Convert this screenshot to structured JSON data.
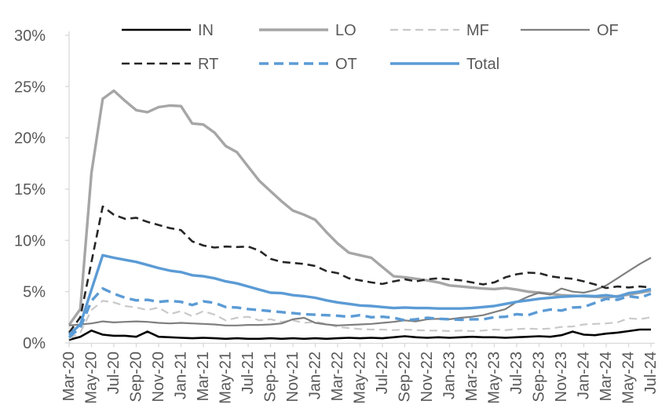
{
  "chart_data": {
    "type": "line",
    "title": "",
    "xlabel": "",
    "ylabel": "",
    "ylim": [
      0,
      30
    ],
    "grid": false,
    "legend_position": "top",
    "axis_text_color": "#595959",
    "axis_line_color": "#d9d9d9",
    "y_tick_values": [
      0,
      5,
      10,
      15,
      20,
      25,
      30
    ],
    "y_tick_labels": [
      "0%",
      "5%",
      "10%",
      "15%",
      "20%",
      "25%",
      "30%"
    ],
    "x_label_every": 2,
    "x": [
      "Mar-20",
      "Apr-20",
      "May-20",
      "Jun-20",
      "Jul-20",
      "Aug-20",
      "Sep-20",
      "Oct-20",
      "Nov-20",
      "Dec-20",
      "Jan-21",
      "Feb-21",
      "Mar-21",
      "Apr-21",
      "May-21",
      "Jun-21",
      "Jul-21",
      "Aug-21",
      "Sep-21",
      "Oct-21",
      "Nov-21",
      "Dec-21",
      "Jan-22",
      "Feb-22",
      "Mar-22",
      "Apr-22",
      "May-22",
      "Jun-22",
      "Jul-22",
      "Aug-22",
      "Sep-22",
      "Oct-22",
      "Nov-22",
      "Dec-22",
      "Jan-23",
      "Feb-23",
      "Mar-23",
      "Apr-23",
      "May-23",
      "Jun-23",
      "Jul-23",
      "Aug-23",
      "Sep-23",
      "Oct-23",
      "Nov-23",
      "Dec-23",
      "Jan-24",
      "Feb-24",
      "Mar-24",
      "Apr-24",
      "May-24",
      "Jun-24",
      "Jul-24"
    ],
    "series": [
      {
        "name": "IN",
        "color": "#000000",
        "dash": "none",
        "width": 2.6,
        "values": [
          0.3,
          0.6,
          1.2,
          0.8,
          0.7,
          0.7,
          0.6,
          1.1,
          0.6,
          0.55,
          0.5,
          0.45,
          0.5,
          0.45,
          0.4,
          0.45,
          0.4,
          0.4,
          0.45,
          0.4,
          0.45,
          0.4,
          0.45,
          0.4,
          0.45,
          0.5,
          0.45,
          0.5,
          0.45,
          0.55,
          0.65,
          0.55,
          0.5,
          0.55,
          0.5,
          0.55,
          0.6,
          0.55,
          0.55,
          0.5,
          0.55,
          0.6,
          0.65,
          0.6,
          0.75,
          1.1,
          0.8,
          0.75,
          0.9,
          1.0,
          1.15,
          1.3,
          1.3
        ]
      },
      {
        "name": "LO",
        "color": "#a6a6a6",
        "dash": "none",
        "width": 3.4,
        "values": [
          1.75,
          3.3,
          16.6,
          23.8,
          24.6,
          23.6,
          22.7,
          22.5,
          23.0,
          23.15,
          23.1,
          21.4,
          21.3,
          20.5,
          19.2,
          18.6,
          17.2,
          15.8,
          14.8,
          13.8,
          12.9,
          12.5,
          12.0,
          10.8,
          9.7,
          8.8,
          8.55,
          8.3,
          7.4,
          6.5,
          6.4,
          6.25,
          6.1,
          5.9,
          5.6,
          5.5,
          5.4,
          5.3,
          5.25,
          5.35,
          5.2,
          5.0,
          4.9,
          4.8,
          4.65,
          4.6,
          4.55,
          4.5,
          4.45,
          4.55,
          4.7,
          4.9,
          5.1
        ]
      },
      {
        "name": "MF",
        "color": "#c9c9c9",
        "dash": "10 6",
        "width": 2.2,
        "values": [
          0.4,
          1.0,
          3.2,
          4.1,
          3.95,
          3.6,
          3.45,
          3.2,
          3.45,
          2.8,
          3.1,
          2.6,
          3.1,
          2.75,
          2.2,
          2.45,
          2.55,
          2.2,
          2.3,
          2.05,
          2.2,
          1.95,
          2.05,
          1.85,
          1.55,
          1.45,
          1.35,
          1.3,
          1.3,
          1.25,
          1.3,
          1.25,
          1.2,
          1.2,
          1.15,
          1.2,
          1.15,
          1.2,
          1.3,
          1.25,
          1.35,
          1.4,
          1.35,
          1.4,
          1.55,
          1.6,
          1.8,
          1.85,
          1.9,
          2.0,
          2.4,
          2.3,
          2.5
        ]
      },
      {
        "name": "OF",
        "color": "#7f7f7f",
        "dash": "none",
        "width": 2.2,
        "values": [
          1.7,
          1.8,
          1.9,
          2.1,
          2.0,
          2.05,
          2.1,
          2.05,
          1.95,
          1.9,
          1.95,
          1.9,
          1.85,
          1.8,
          1.7,
          1.7,
          1.75,
          1.75,
          1.8,
          1.9,
          2.3,
          2.45,
          1.95,
          1.8,
          1.7,
          1.75,
          1.8,
          1.85,
          1.95,
          2.05,
          2.2,
          2.1,
          2.3,
          2.35,
          2.3,
          2.45,
          2.55,
          2.7,
          3.0,
          3.3,
          4.0,
          4.5,
          4.9,
          4.7,
          5.3,
          5.0,
          4.9,
          5.15,
          5.6,
          6.3,
          7.0,
          7.7,
          8.3
        ]
      },
      {
        "name": "RT",
        "color": "#262626",
        "dash": "10 6",
        "width": 2.6,
        "values": [
          1.0,
          2.5,
          7.9,
          13.3,
          12.5,
          12.1,
          12.2,
          11.8,
          11.5,
          11.2,
          11.0,
          9.9,
          9.5,
          9.3,
          9.4,
          9.35,
          9.4,
          9.0,
          8.2,
          7.9,
          7.8,
          7.7,
          7.5,
          7.0,
          6.8,
          6.3,
          6.1,
          5.9,
          5.75,
          6.0,
          6.2,
          6.0,
          6.2,
          6.3,
          6.2,
          6.1,
          5.9,
          5.7,
          5.9,
          6.4,
          6.7,
          6.85,
          6.8,
          6.5,
          6.35,
          6.25,
          6.0,
          5.7,
          5.35,
          5.5,
          5.4,
          5.5,
          5.4
        ]
      },
      {
        "name": "OT",
        "color": "#5b9bd5",
        "dash": "12 7",
        "width": 3.4,
        "values": [
          0.55,
          1.5,
          4.1,
          5.3,
          4.8,
          4.4,
          4.15,
          4.2,
          4.0,
          4.1,
          4.0,
          3.7,
          4.05,
          3.9,
          3.5,
          3.45,
          3.3,
          3.2,
          3.1,
          3.0,
          2.9,
          2.8,
          2.75,
          2.7,
          2.65,
          2.55,
          2.7,
          2.5,
          2.55,
          2.45,
          2.2,
          2.3,
          2.45,
          2.35,
          2.3,
          2.25,
          2.3,
          2.3,
          2.5,
          2.55,
          2.8,
          2.7,
          3.05,
          3.25,
          3.15,
          3.45,
          3.5,
          3.9,
          4.3,
          4.2,
          4.55,
          4.4,
          4.8
        ]
      },
      {
        "name": "Total",
        "color": "#5b9bd5",
        "dash": "none",
        "width": 3.4,
        "values": [
          0.8,
          1.8,
          5.2,
          8.55,
          8.3,
          8.1,
          7.9,
          7.6,
          7.3,
          7.05,
          6.9,
          6.6,
          6.5,
          6.3,
          6.0,
          5.8,
          5.5,
          5.2,
          4.9,
          4.85,
          4.65,
          4.55,
          4.4,
          4.15,
          3.95,
          3.8,
          3.65,
          3.6,
          3.5,
          3.4,
          3.45,
          3.4,
          3.4,
          3.35,
          3.35,
          3.35,
          3.4,
          3.5,
          3.6,
          3.8,
          4.0,
          4.15,
          4.3,
          4.4,
          4.5,
          4.55,
          4.6,
          4.55,
          4.65,
          4.5,
          4.85,
          5.0,
          5.25
        ]
      }
    ],
    "legend": {
      "rows": [
        [
          "IN",
          "LO",
          "MF",
          "OF"
        ],
        [
          "RT",
          "OT",
          "Total"
        ]
      ]
    }
  }
}
